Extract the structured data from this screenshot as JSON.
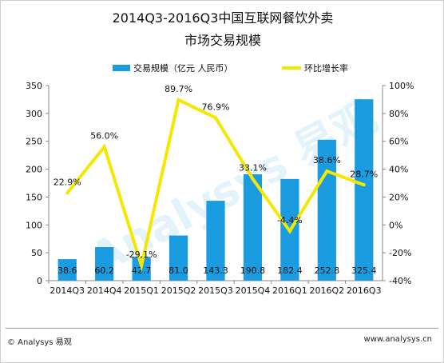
{
  "chart_data": {
    "type": "bar",
    "title": "2014Q3-2016Q3中国互联网餐饮外卖",
    "subtitle": "市场交易规模",
    "categories": [
      "2014Q3",
      "2014Q4",
      "2015Q1",
      "2015Q2",
      "2015Q3",
      "2015Q4",
      "2016Q1",
      "2016Q2",
      "2016Q3"
    ],
    "series": [
      {
        "name": "交易规模（亿元 人民币）",
        "chart": "bar",
        "axis": "left",
        "color": "#1b9be0",
        "values": [
          38.6,
          60.2,
          42.7,
          81.0,
          143.3,
          190.8,
          182.4,
          252.8,
          325.4
        ],
        "labels": [
          "38.6",
          "60.2",
          "42.7",
          "81.0",
          "143.3",
          "190.8",
          "182.4",
          "252.8",
          "325.4"
        ]
      },
      {
        "name": "环比增长率",
        "chart": "line",
        "axis": "right",
        "color": "#f5e800",
        "values": [
          22.9,
          56.0,
          -29.1,
          89.7,
          76.9,
          33.1,
          -4.4,
          38.6,
          28.7
        ],
        "labels": [
          "22.9%",
          "56.0%",
          "-29.1%",
          "89.7%",
          "76.9%",
          "33.1%",
          "-4.4%",
          "38.6%",
          "28.7%"
        ]
      }
    ],
    "yleft": {
      "ylim": [
        0,
        350
      ],
      "ticks": [
        "0",
        "50",
        "100",
        "150",
        "200",
        "250",
        "300",
        "350"
      ]
    },
    "yright": {
      "ylim": [
        -40,
        100
      ],
      "ticks": [
        "-40%",
        "-20%",
        "0%",
        "20%",
        "40%",
        "60%",
        "80%",
        "100%"
      ]
    },
    "legend": "top",
    "grid": false
  },
  "footer": {
    "left": "© Analysys 易观",
    "right": "www.analysys.cn"
  },
  "watermark": "Analysys 易观"
}
